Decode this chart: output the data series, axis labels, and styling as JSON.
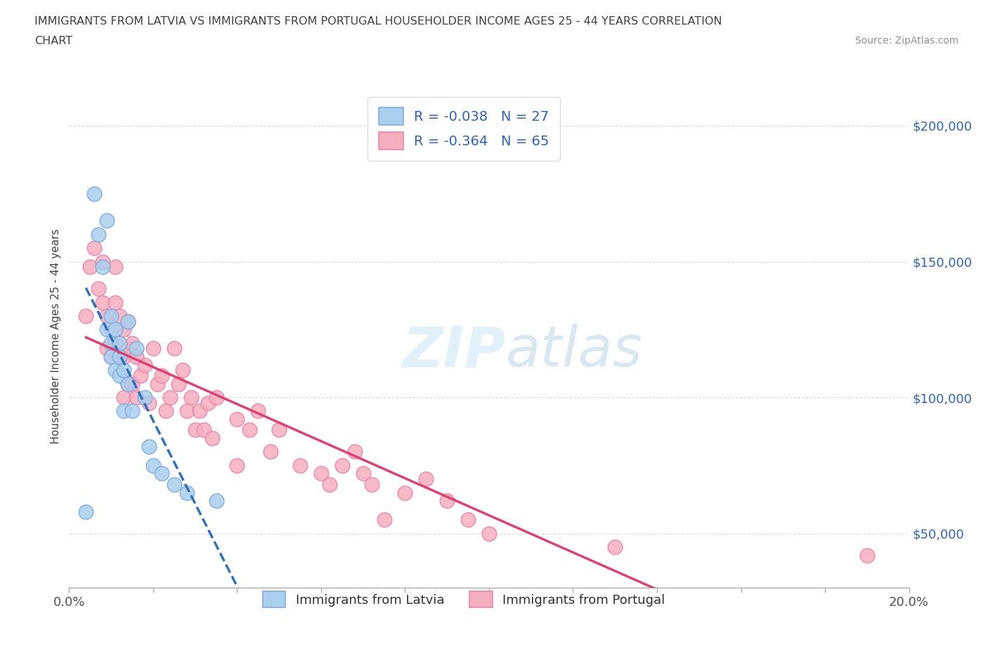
{
  "title_line1": "IMMIGRANTS FROM LATVIA VS IMMIGRANTS FROM PORTUGAL HOUSEHOLDER INCOME AGES 25 - 44 YEARS CORRELATION",
  "title_line2": "CHART",
  "source_text": "Source: ZipAtlas.com",
  "ylabel": "Householder Income Ages 25 - 44 years",
  "xlim": [
    0.0,
    0.2
  ],
  "ylim": [
    30000,
    215000
  ],
  "yticks": [
    50000,
    100000,
    150000,
    200000
  ],
  "ytick_labels": [
    "$50,000",
    "$100,000",
    "$150,000",
    "$200,000"
  ],
  "xticks": [
    0.0,
    0.02,
    0.04,
    0.06,
    0.08,
    0.1,
    0.12,
    0.14,
    0.16,
    0.18,
    0.2
  ],
  "watermark": "ZIPatlas",
  "latvia_color": "#aacfee",
  "latvia_edge_color": "#80aedd",
  "portugal_color": "#f5aec0",
  "portugal_edge_color": "#e888a8",
  "latvia_R": -0.038,
  "latvia_N": 27,
  "portugal_R": -0.364,
  "portugal_N": 65,
  "latvia_line_color": "#3070c0",
  "portugal_line_color": "#e04070",
  "legend_text_color": "#3060c0",
  "grid_color": "#d0d0d0",
  "bg_color": "#ffffff",
  "title_color": "#404040",
  "source_color": "#909090",
  "latvia_x": [
    0.004,
    0.006,
    0.007,
    0.008,
    0.009,
    0.009,
    0.01,
    0.01,
    0.01,
    0.011,
    0.011,
    0.012,
    0.012,
    0.012,
    0.013,
    0.013,
    0.014,
    0.014,
    0.015,
    0.016,
    0.018,
    0.019,
    0.02,
    0.022,
    0.025,
    0.028,
    0.035
  ],
  "latvia_y": [
    58000,
    175000,
    160000,
    148000,
    165000,
    125000,
    130000,
    120000,
    115000,
    110000,
    125000,
    120000,
    115000,
    108000,
    95000,
    110000,
    128000,
    105000,
    95000,
    118000,
    100000,
    82000,
    75000,
    72000,
    68000,
    65000,
    62000
  ],
  "portugal_x": [
    0.004,
    0.005,
    0.006,
    0.007,
    0.008,
    0.008,
    0.009,
    0.009,
    0.01,
    0.01,
    0.011,
    0.011,
    0.011,
    0.012,
    0.012,
    0.013,
    0.013,
    0.013,
    0.014,
    0.014,
    0.014,
    0.015,
    0.015,
    0.016,
    0.016,
    0.017,
    0.018,
    0.019,
    0.02,
    0.021,
    0.022,
    0.023,
    0.024,
    0.025,
    0.026,
    0.027,
    0.028,
    0.029,
    0.03,
    0.031,
    0.032,
    0.033,
    0.034,
    0.035,
    0.04,
    0.04,
    0.043,
    0.045,
    0.048,
    0.05,
    0.055,
    0.06,
    0.062,
    0.065,
    0.068,
    0.07,
    0.072,
    0.075,
    0.08,
    0.085,
    0.09,
    0.095,
    0.1,
    0.13,
    0.19
  ],
  "portugal_y": [
    130000,
    148000,
    155000,
    140000,
    150000,
    135000,
    130000,
    118000,
    125000,
    115000,
    148000,
    135000,
    120000,
    130000,
    115000,
    125000,
    115000,
    100000,
    128000,
    118000,
    105000,
    120000,
    105000,
    115000,
    100000,
    108000,
    112000,
    98000,
    118000,
    105000,
    108000,
    95000,
    100000,
    118000,
    105000,
    110000,
    95000,
    100000,
    88000,
    95000,
    88000,
    98000,
    85000,
    100000,
    92000,
    75000,
    88000,
    95000,
    80000,
    88000,
    75000,
    72000,
    68000,
    75000,
    80000,
    72000,
    68000,
    55000,
    65000,
    70000,
    62000,
    55000,
    50000,
    45000,
    42000
  ]
}
